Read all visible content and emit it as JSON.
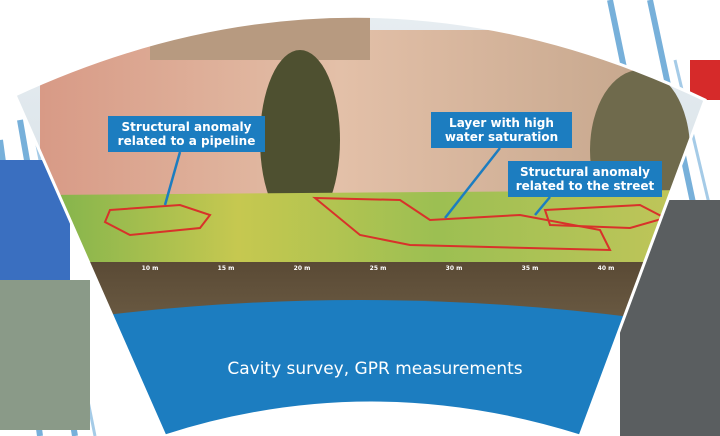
{
  "callouts": [
    {
      "lines": [
        "Structural anomaly",
        "related to a pipeline"
      ]
    },
    {
      "lines": [
        "Layer with high",
        "water saturation"
      ]
    },
    {
      "lines": [
        "Structural anomaly",
        "related to the street"
      ]
    }
  ],
  "scale_labels": [
    "10 m",
    "15 m",
    "20 m",
    "25 m",
    "30 m",
    "35 m",
    "40 m"
  ],
  "caption": "Cavity survey, GPR measurements"
}
